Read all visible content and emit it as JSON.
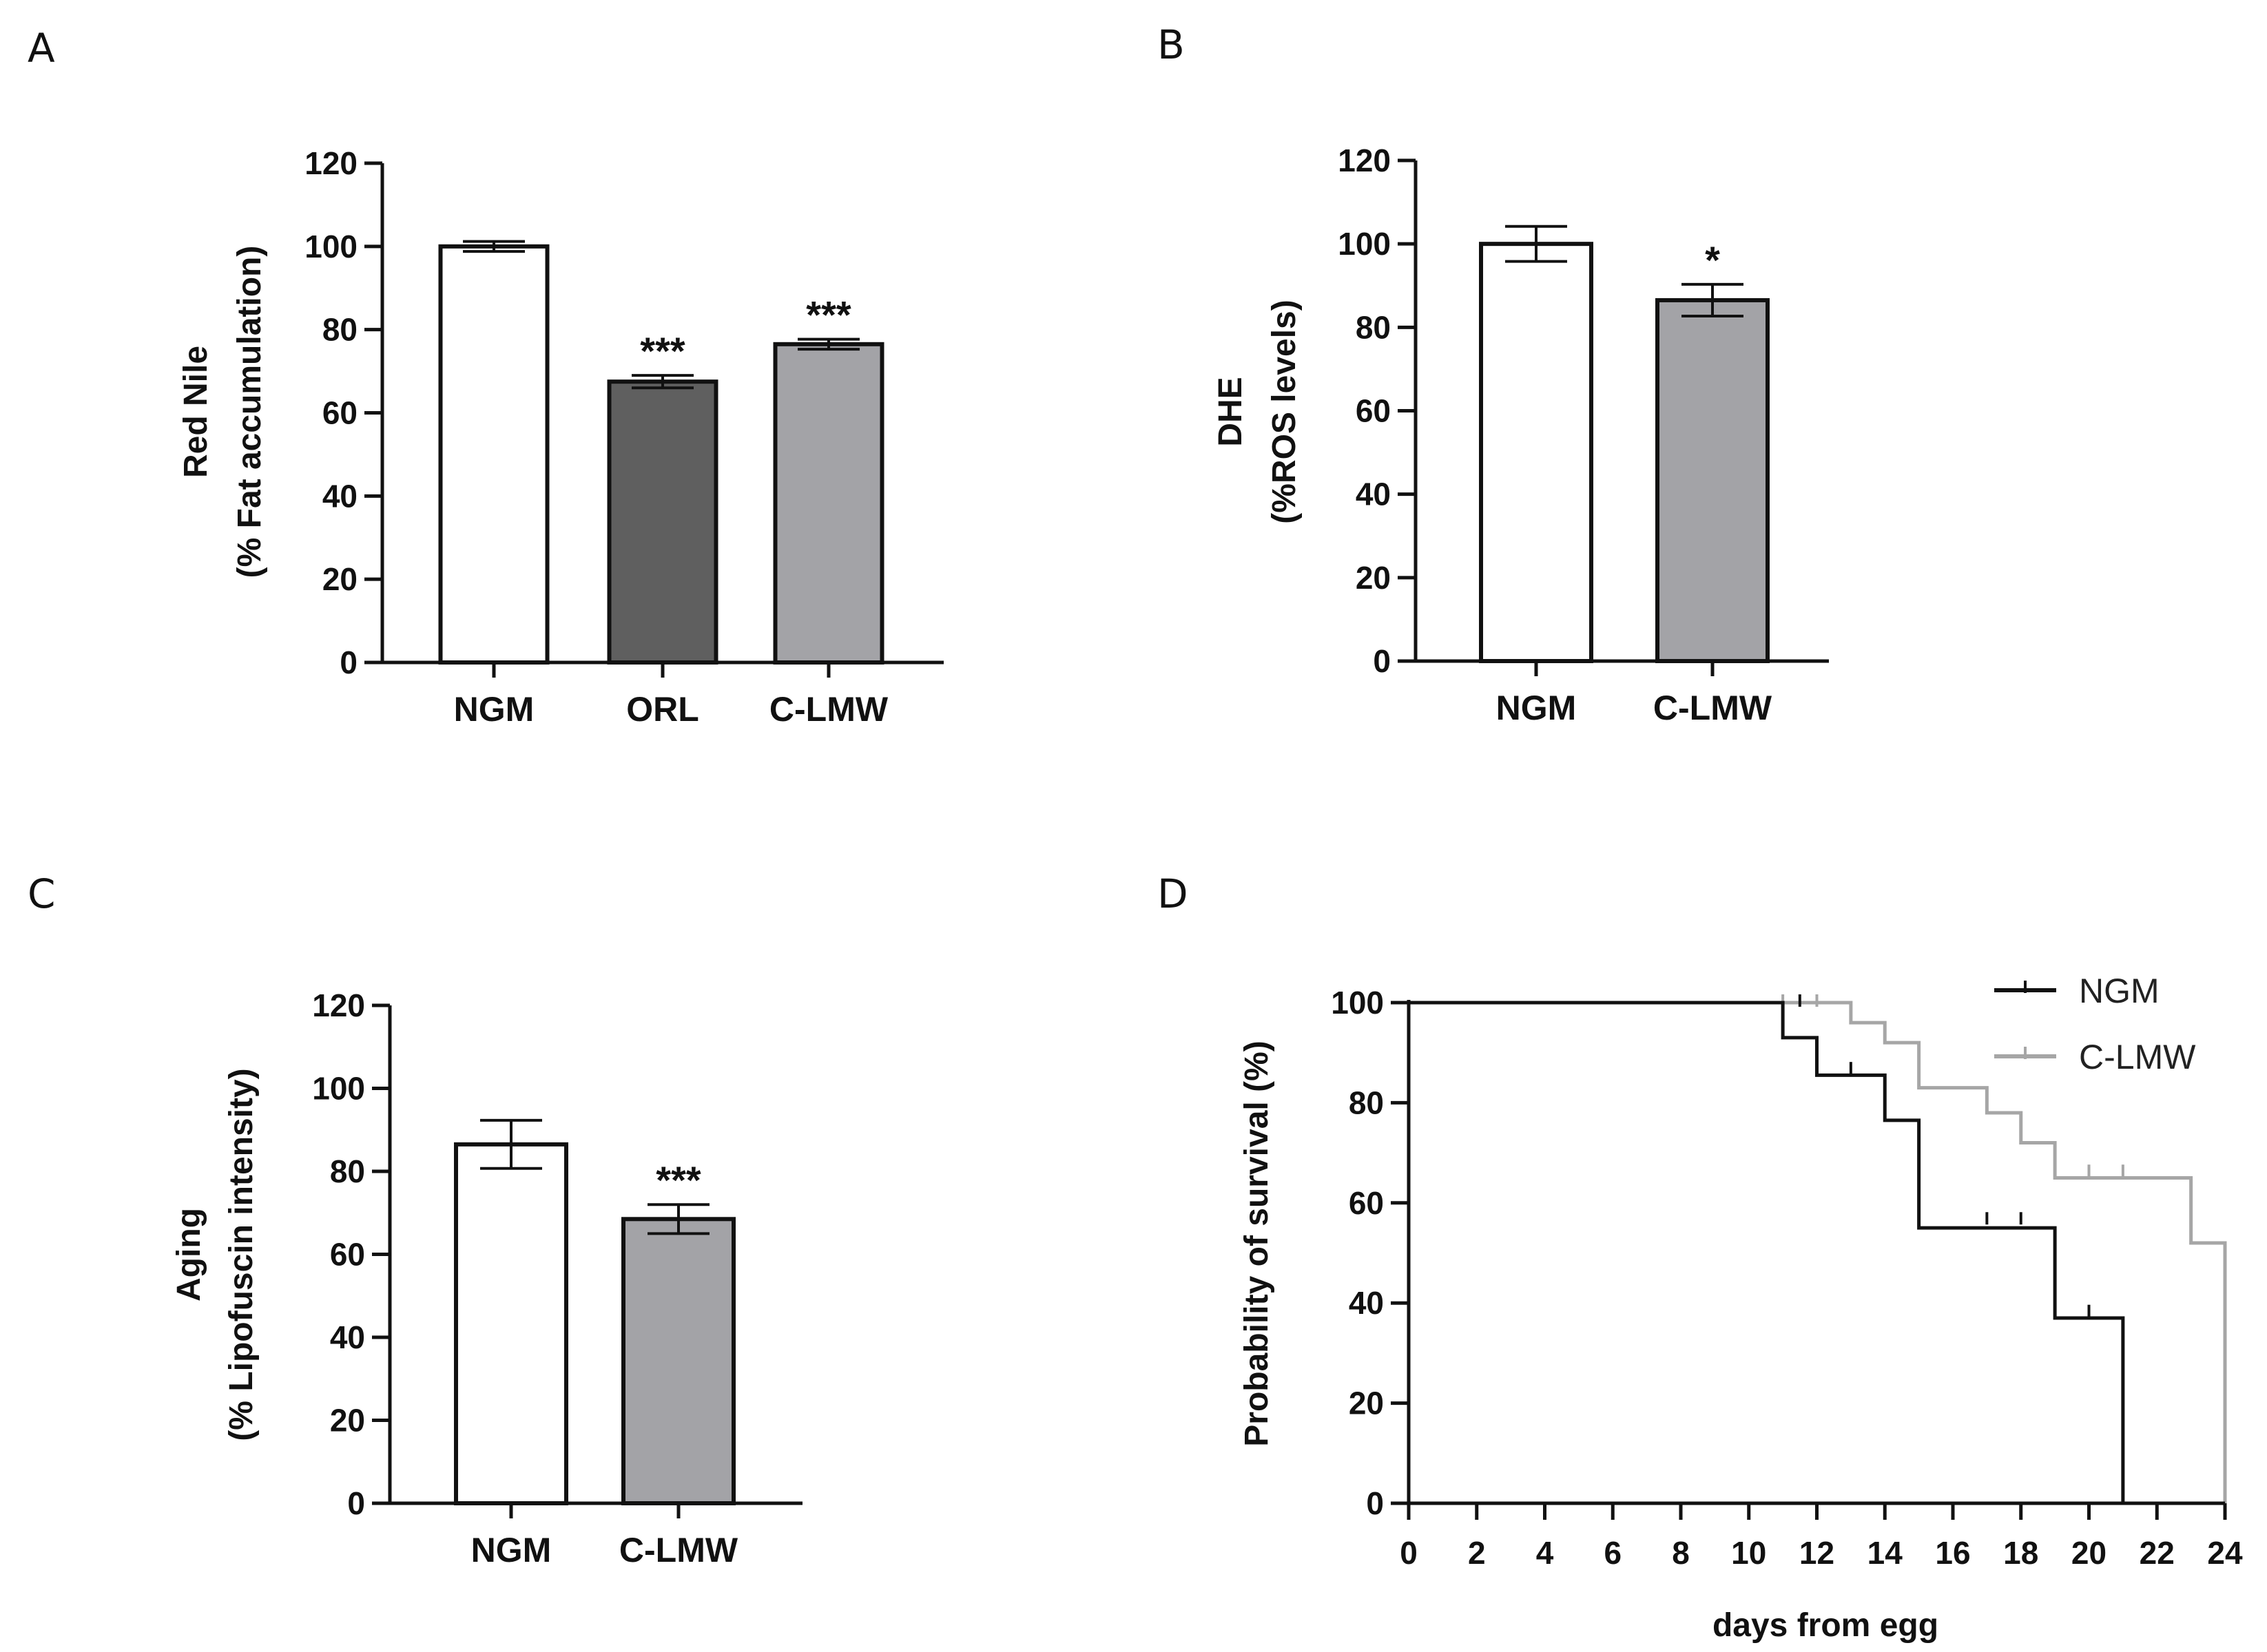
{
  "colors": {
    "white": "#ffffff",
    "dark_gray": "#5f5f5f",
    "mid_gray": "#a3a3a7",
    "black": "#111111",
    "light_gray_line": "#a6a6a6"
  },
  "chart_data": [
    {
      "panel": "A",
      "type": "bar",
      "ylabel_line1": "Red Nile",
      "ylabel_line2": "(%  Fat accumulation)",
      "ylim": [
        0,
        120
      ],
      "yticks": [
        0,
        20,
        40,
        60,
        80,
        100,
        120
      ],
      "yticks_text": [
        "0",
        "20",
        "40",
        "60",
        "80",
        "100",
        "120"
      ],
      "categories": [
        "NGM",
        "ORL",
        "C-LMW"
      ],
      "values": [
        100,
        67.5,
        76.5
      ],
      "errors": [
        1.2,
        1.5,
        1.2
      ],
      "fills": [
        "#ffffff",
        "#5f5f5f",
        "#a3a3a7"
      ],
      "annotations": [
        "",
        "***",
        "***"
      ]
    },
    {
      "panel": "B",
      "type": "bar",
      "ylabel_line1": "DHE",
      "ylabel_line2": "(%ROS levels)",
      "ylim": [
        0,
        120
      ],
      "yticks": [
        0,
        20,
        40,
        60,
        80,
        100,
        120
      ],
      "yticks_text": [
        "0",
        "20",
        "40",
        "60",
        "80",
        "100",
        "120"
      ],
      "categories": [
        "NGM",
        "C-LMW"
      ],
      "values": [
        100,
        86.5
      ],
      "errors": [
        4.2,
        3.8
      ],
      "fills": [
        "#ffffff",
        "#a3a3a7"
      ],
      "annotations": [
        "",
        "*"
      ]
    },
    {
      "panel": "C",
      "type": "bar",
      "ylabel_line1": "Aging",
      "ylabel_line2": "(% Lipofuscin intensity)",
      "ylim": [
        0,
        120
      ],
      "yticks": [
        0,
        20,
        40,
        60,
        80,
        100,
        120
      ],
      "yticks_text": [
        "0",
        "20",
        "40",
        "60",
        "80",
        "100",
        "120"
      ],
      "categories": [
        "NGM",
        "C-LMW"
      ],
      "values": [
        86.5,
        68.5
      ],
      "errors": [
        5.8,
        3.5
      ],
      "fills": [
        "#ffffff",
        "#a3a3a7"
      ],
      "annotations": [
        "",
        "***"
      ]
    },
    {
      "panel": "D",
      "type": "line",
      "subtype": "kaplan-meier survival",
      "xlabel": "days from egg",
      "ylabel": "Probability of survival (%)",
      "xlim": [
        0,
        24
      ],
      "ylim": [
        0,
        100
      ],
      "xticks": [
        0,
        2,
        4,
        6,
        8,
        10,
        12,
        14,
        16,
        18,
        20,
        22,
        24
      ],
      "xticks_text": [
        "0",
        "2",
        "4",
        "6",
        "8",
        "10",
        "12",
        "14",
        "16",
        "18",
        "20",
        "22",
        "24"
      ],
      "yticks": [
        0,
        20,
        40,
        60,
        80,
        100
      ],
      "yticks_text": [
        "0",
        "20",
        "40",
        "60",
        "80",
        "100"
      ],
      "legend_position": "top-right",
      "series": [
        {
          "name": "NGM",
          "color": "#111111",
          "steps": [
            [
              0,
              100
            ],
            [
              11,
              93
            ],
            [
              12,
              85.5
            ],
            [
              14,
              76.5
            ],
            [
              15,
              55
            ],
            [
              19,
              37
            ],
            [
              21,
              0
            ],
            [
              24,
              0
            ]
          ],
          "censored": [
            [
              11.5,
              100
            ],
            [
              13,
              86.5
            ],
            [
              17,
              56.5
            ],
            [
              18,
              56.5
            ],
            [
              20,
              38
            ]
          ]
        },
        {
          "name": "C-LMW",
          "color": "#a6a6a6",
          "steps": [
            [
              0,
              100
            ],
            [
              13,
              96
            ],
            [
              14,
              92
            ],
            [
              15,
              83
            ],
            [
              17,
              78
            ],
            [
              18,
              72
            ],
            [
              19,
              65
            ],
            [
              23,
              52
            ],
            [
              24,
              0
            ]
          ],
          "censored": [
            [
              11,
              100
            ],
            [
              12,
              100
            ],
            [
              20,
              66
            ],
            [
              21,
              66
            ]
          ]
        }
      ]
    }
  ]
}
